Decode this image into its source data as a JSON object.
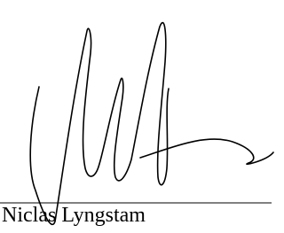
{
  "signature": {
    "name": "Niclas Lyngstam"
  }
}
